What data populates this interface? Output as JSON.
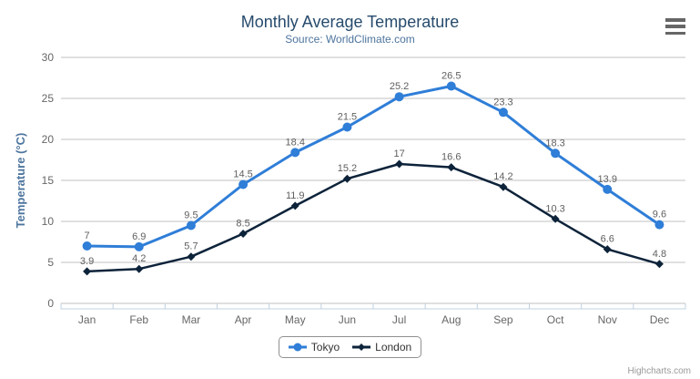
{
  "chart_data": {
    "type": "line",
    "title": "Monthly Average Temperature",
    "subtitle": "Source: WorldClimate.com",
    "xlabel": "",
    "ylabel": "Temperature (°C)",
    "ylim": [
      0,
      30
    ],
    "ytick_interval": 5,
    "yticks": [
      0,
      5,
      10,
      15,
      20,
      25,
      30
    ],
    "grid": true,
    "legend_position": "bottom",
    "categories": [
      "Jan",
      "Feb",
      "Mar",
      "Apr",
      "May",
      "Jun",
      "Jul",
      "Aug",
      "Sep",
      "Oct",
      "Nov",
      "Dec"
    ],
    "series": [
      {
        "name": "Tokyo",
        "marker": "circle",
        "color": "#2f7ed8",
        "values": [
          7,
          6.9,
          9.5,
          14.5,
          18.4,
          21.5,
          25.2,
          26.5,
          23.3,
          18.3,
          13.9,
          9.6
        ]
      },
      {
        "name": "London",
        "marker": "diamond",
        "color": "#0d233a",
        "values": [
          3.9,
          4.2,
          5.7,
          8.5,
          11.9,
          15.2,
          17,
          16.6,
          14.2,
          10.3,
          6.6,
          4.8
        ]
      }
    ],
    "colors": {
      "title": "#274b6d",
      "subtitle": "#4d759e",
      "axis_title": "#4d759e",
      "axis_labels": "#666666",
      "data_labels": "#606060",
      "grid_line": "#c0c0c0",
      "axis_line": "#c0d0e0",
      "tick": "#c0d0e0",
      "legend_border": "#909090",
      "legend_text": "#333333"
    }
  },
  "icons": {
    "context_menu": "hamburger-icon"
  },
  "credits": {
    "label": "Highcharts.com"
  }
}
